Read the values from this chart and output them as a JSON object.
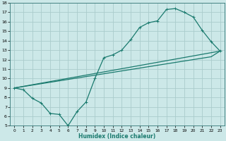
{
  "xlabel": "Humidex (Indice chaleur)",
  "background_color": "#cce8e8",
  "grid_color": "#aacccc",
  "line_color": "#1a7a6e",
  "xlim": [
    -0.5,
    23.5
  ],
  "ylim": [
    5,
    18
  ],
  "xticks": [
    0,
    1,
    2,
    3,
    4,
    5,
    6,
    7,
    8,
    9,
    10,
    11,
    12,
    13,
    14,
    15,
    16,
    17,
    18,
    19,
    20,
    21,
    22,
    23
  ],
  "yticks": [
    5,
    6,
    7,
    8,
    9,
    10,
    11,
    12,
    13,
    14,
    15,
    16,
    17,
    18
  ],
  "line1_x": [
    0,
    1,
    2,
    3,
    4,
    5,
    6,
    7,
    8,
    9,
    10,
    11,
    12,
    13,
    14,
    15,
    16,
    17,
    18,
    19,
    20,
    21,
    22,
    23
  ],
  "line1_y": [
    9.0,
    8.8,
    7.9,
    7.4,
    6.3,
    6.2,
    5.0,
    6.5,
    7.5,
    10.0,
    12.2,
    12.5,
    13.0,
    14.1,
    15.4,
    15.9,
    16.1,
    17.3,
    17.4,
    17.0,
    16.5,
    15.1,
    13.9,
    12.9
  ],
  "line2_x": [
    0,
    23
  ],
  "line2_y": [
    9.0,
    12.9
  ],
  "line3_x": [
    0,
    1,
    2,
    3,
    4,
    5,
    6,
    7,
    8,
    9,
    10,
    11,
    12,
    13,
    14,
    15,
    16,
    17,
    18,
    19,
    20,
    21,
    22,
    23
  ],
  "line3_y": [
    9.0,
    9.15,
    9.3,
    9.45,
    9.6,
    9.75,
    9.9,
    10.05,
    10.2,
    10.35,
    10.5,
    10.65,
    10.8,
    10.95,
    11.1,
    11.25,
    11.4,
    11.55,
    11.7,
    11.85,
    12.0,
    12.15,
    12.3,
    12.9
  ],
  "marker": "+",
  "markersize": 2.5,
  "linewidth": 0.9,
  "xlabel_fontsize": 5.5,
  "tick_fontsize": 4.2
}
